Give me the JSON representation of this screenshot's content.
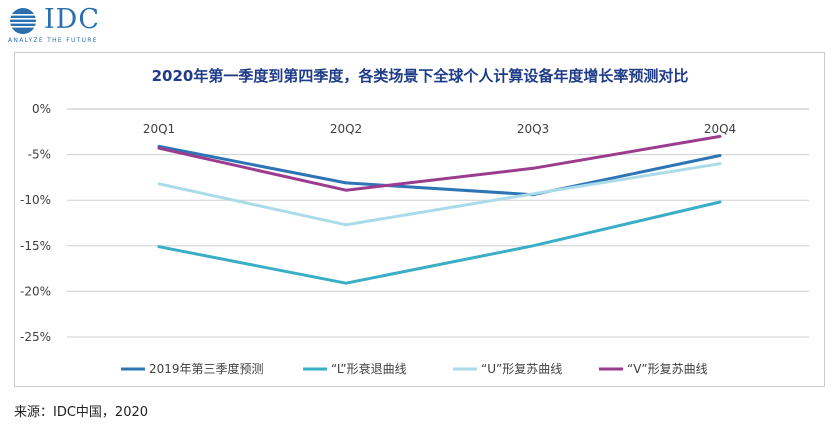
{
  "logo": {
    "word": "IDC",
    "tagline": "ANALYZE THE FUTURE"
  },
  "source": "来源：IDC中国，2020",
  "colors": {
    "frame": "#c9cdd3",
    "grid": "#d0d0d0",
    "axis": "#bfbfbf",
    "text": "#404040",
    "title": "#1f3c88"
  },
  "chart_data": {
    "type": "line",
    "title": "2020年第一季度到第四季度，各类场景下全球个人计算设备年度增长率预测对比",
    "categories": [
      "20Q1",
      "20Q2",
      "20Q3",
      "20Q4"
    ],
    "y_ticks": [
      "0%",
      "-5%",
      "-10%",
      "-15%",
      "-20%",
      "-25%"
    ],
    "ylim": [
      -25,
      0
    ],
    "grid": true,
    "legend_position": "bottom",
    "series": [
      {
        "name": "2019年第三季度预测",
        "color": "#2e75b6",
        "values": [
          -4.1,
          -8.1,
          -9.4,
          -5.1
        ]
      },
      {
        "name": "“L”形衰退曲线",
        "color": "#3aaec6",
        "values": [
          -15.1,
          -19.1,
          -15.0,
          -10.2
        ]
      },
      {
        "name": "“U”形复苏曲线",
        "color": "#a9dbe8",
        "values": [
          -8.2,
          -12.7,
          -9.3,
          -6.0
        ]
      },
      {
        "name": "“V”形复苏曲线",
        "color": "#9b3c8f",
        "values": [
          -4.3,
          -8.9,
          -6.5,
          -3.0
        ]
      }
    ]
  }
}
